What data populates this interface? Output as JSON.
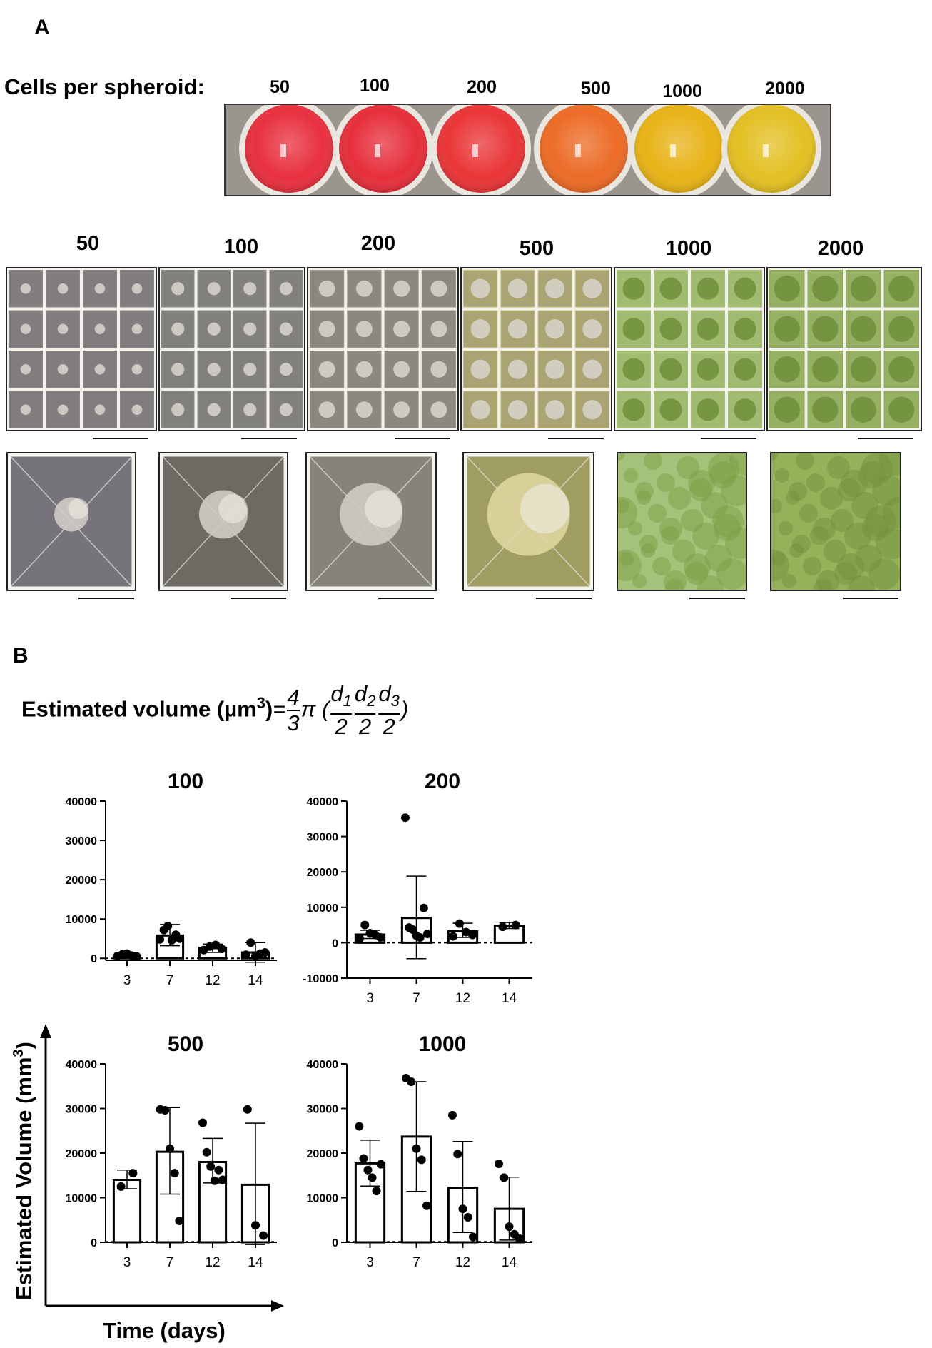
{
  "panel_a": {
    "letter": "A",
    "cells_label": "Cells per spheroid:",
    "plate_labels": [
      "50",
      "100",
      "200",
      "500",
      "1000",
      "2000"
    ],
    "well_colors": [
      "#e8303e",
      "#e62f3b",
      "#ea3537",
      "#ec6b26",
      "#e8b317",
      "#e3c023"
    ],
    "grid_labels": [
      "50",
      "100",
      "200",
      "500",
      "1000",
      "2000"
    ],
    "grid_tints": [
      "#8a8688",
      "#8d8a86",
      "#9a978c",
      "#c9c27a",
      "#a8c07a",
      "#8ea85a"
    ]
  },
  "panel_b": {
    "letter": "B",
    "formula": {
      "lhs": "Estimated volume (µm",
      "lhs_sup": "3",
      "lhs_close": ")",
      "eq": "=",
      "frac_num": "4",
      "frac_den": "3",
      "pi": "π",
      "open": "(",
      "close": ")",
      "d1": "d",
      "d1_sub": "1",
      "d2": "d",
      "d2_sub": "2",
      "d3": "d",
      "d3_sub": "3",
      "den": "2"
    },
    "y_axis_label": "Estimated Volume (mm",
    "y_axis_sup": "3",
    "y_axis_close": ")",
    "x_axis_label": "Time (days)"
  },
  "chart_data": [
    {
      "type": "bar",
      "title": "100",
      "categories": [
        "3",
        "7",
        "12",
        "14"
      ],
      "values": [
        700,
        5800,
        2600,
        1500
      ],
      "error": [
        [
          400,
          1000
        ],
        [
          3200,
          8600
        ],
        [
          1500,
          3600
        ],
        [
          -1000,
          4000
        ]
      ],
      "points": [
        [
          600,
          1000,
          1200,
          700,
          500
        ],
        [
          4800,
          7200,
          8200,
          4600,
          6000,
          5000
        ],
        [
          2100,
          3000,
          3400,
          2400
        ],
        [
          900,
          4000,
          600,
          1200,
          1500
        ]
      ],
      "ylim": [
        -500,
        40000
      ],
      "yticks": [
        0,
        10000,
        20000,
        30000,
        40000
      ]
    },
    {
      "type": "bar",
      "title": "200",
      "categories": [
        "3",
        "7",
        "12",
        "14"
      ],
      "values": [
        2300,
        7000,
        3200,
        4800
      ],
      "error": [
        [
          1200,
          3500
        ],
        [
          -4500,
          18800
        ],
        [
          1500,
          5500
        ],
        [
          4000,
          5700
        ]
      ],
      "points": [
        [
          1200,
          5000,
          2700,
          2200,
          1500
        ],
        [
          35300,
          4300,
          3700,
          2000,
          1500,
          9800,
          2500
        ],
        [
          1800,
          5400,
          3000,
          2200
        ],
        [
          4500,
          5000
        ]
      ],
      "ylim": [
        -10000,
        40000
      ],
      "yticks": [
        -10000,
        0,
        10000,
        20000,
        30000,
        40000
      ]
    },
    {
      "type": "bar",
      "title": "500",
      "categories": [
        "3",
        "7",
        "12",
        "14"
      ],
      "values": [
        14000,
        20300,
        18000,
        12900
      ],
      "error": [
        [
          12000,
          16200
        ],
        [
          10800,
          30200
        ],
        [
          13300,
          23300
        ],
        [
          -500,
          26700
        ]
      ],
      "points": [
        [
          12500,
          15500
        ],
        [
          29800,
          29600,
          21000,
          15500,
          4800
        ],
        [
          26800,
          20200,
          17000,
          13800,
          16200,
          14000
        ],
        [
          29800,
          3800,
          1500
        ]
      ],
      "ylim": [
        0,
        40000
      ],
      "yticks": [
        0,
        10000,
        20000,
        30000,
        40000
      ]
    },
    {
      "type": "bar",
      "title": "1000",
      "categories": [
        "3",
        "7",
        "12",
        "14"
      ],
      "values": [
        17700,
        23700,
        12200,
        7500
      ],
      "error": [
        [
          12600,
          22900
        ],
        [
          11400,
          36000
        ],
        [
          2200,
          22600
        ],
        [
          500,
          14600
        ]
      ],
      "points": [
        [
          26000,
          18800,
          16200,
          14500,
          11500,
          17500
        ],
        [
          36800,
          36000,
          21000,
          18500,
          8200
        ],
        [
          28500,
          19800,
          7500,
          5600,
          1200
        ],
        [
          17600,
          14500,
          3500,
          1800,
          800
        ]
      ],
      "ylim": [
        0,
        40000
      ],
      "yticks": [
        0,
        10000,
        20000,
        30000,
        40000
      ]
    }
  ]
}
